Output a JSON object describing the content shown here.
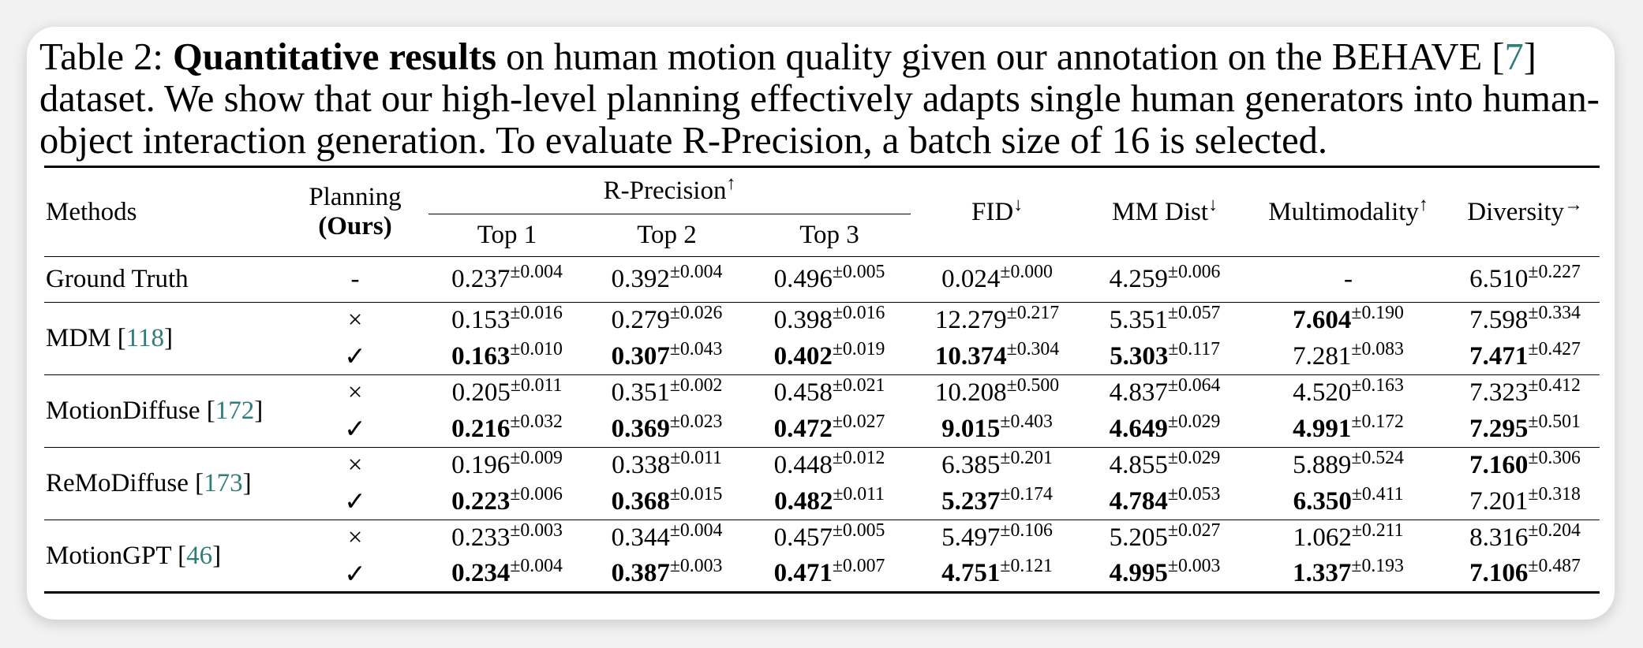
{
  "caption": [
    {
      "text": "Table 2: ",
      "bold": false,
      "link": false
    },
    {
      "text": "Quantitative results",
      "bold": true,
      "link": false
    },
    {
      "text": " on human motion quality given our annotation on the BEHAVE [",
      "bold": false,
      "link": false
    },
    {
      "text": "7",
      "bold": false,
      "link": true
    },
    {
      "text": "] dataset. We show that our high-level planning effectively adapts single human generators into human-object interaction generation. To evaluate R-Precision, a batch size of 16 is selected.",
      "bold": false,
      "link": false
    }
  ],
  "header": {
    "methods": "Methods",
    "planning": "Planning",
    "ours": "(Ours)",
    "r_precision": {
      "text": "R-Precision",
      "arrow": "↑"
    },
    "tops": [
      "Top 1",
      "Top 2",
      "Top 3"
    ],
    "metrics": [
      {
        "text": "FID",
        "arrow": "↓"
      },
      {
        "text": "MM Dist",
        "arrow": "↓"
      },
      {
        "text": "Multimodality",
        "arrow": "↑"
      },
      {
        "text": "Diversity",
        "arrow": "→"
      }
    ]
  },
  "groups": [
    {
      "method": [
        {
          "text": "Ground Truth",
          "link": false
        }
      ],
      "rows": [
        {
          "planning": "-",
          "cells": [
            {
              "v": "0.237",
              "s": "±0.004",
              "b": false
            },
            {
              "v": "0.392",
              "s": "±0.004",
              "b": false
            },
            {
              "v": "0.496",
              "s": "±0.005",
              "b": false
            },
            {
              "v": "0.024",
              "s": "±0.000",
              "b": false
            },
            {
              "v": "4.259",
              "s": "±0.006",
              "b": false
            },
            {
              "v": "-",
              "s": "",
              "b": false
            },
            {
              "v": "6.510",
              "s": "±0.227",
              "b": false
            }
          ]
        }
      ]
    },
    {
      "method": [
        {
          "text": "MDM [",
          "link": false
        },
        {
          "text": "118",
          "link": true
        },
        {
          "text": "]",
          "link": false
        }
      ],
      "rows": [
        {
          "planning": "×",
          "cells": [
            {
              "v": "0.153",
              "s": "±0.016",
              "b": false
            },
            {
              "v": "0.279",
              "s": "±0.026",
              "b": false
            },
            {
              "v": "0.398",
              "s": "±0.016",
              "b": false
            },
            {
              "v": "12.279",
              "s": "±0.217",
              "b": false
            },
            {
              "v": "5.351",
              "s": "±0.057",
              "b": false
            },
            {
              "v": "7.604",
              "s": "±0.190",
              "b": true
            },
            {
              "v": "7.598",
              "s": "±0.334",
              "b": false
            }
          ]
        },
        {
          "planning": "✓",
          "cells": [
            {
              "v": "0.163",
              "s": "±0.010",
              "b": true
            },
            {
              "v": "0.307",
              "s": "±0.043",
              "b": true
            },
            {
              "v": "0.402",
              "s": "±0.019",
              "b": true
            },
            {
              "v": "10.374",
              "s": "±0.304",
              "b": true
            },
            {
              "v": "5.303",
              "s": "±0.117",
              "b": true
            },
            {
              "v": "7.281",
              "s": "±0.083",
              "b": false
            },
            {
              "v": "7.471",
              "s": "±0.427",
              "b": true
            }
          ]
        }
      ]
    },
    {
      "method": [
        {
          "text": "MotionDiffuse [",
          "link": false
        },
        {
          "text": "172",
          "link": true
        },
        {
          "text": "]",
          "link": false
        }
      ],
      "rows": [
        {
          "planning": "×",
          "cells": [
            {
              "v": "0.205",
              "s": "±0.011",
              "b": false
            },
            {
              "v": "0.351",
              "s": "±0.002",
              "b": false
            },
            {
              "v": "0.458",
              "s": "±0.021",
              "b": false
            },
            {
              "v": "10.208",
              "s": "±0.500",
              "b": false
            },
            {
              "v": "4.837",
              "s": "±0.064",
              "b": false
            },
            {
              "v": "4.520",
              "s": "±0.163",
              "b": false
            },
            {
              "v": "7.323",
              "s": "±0.412",
              "b": false
            }
          ]
        },
        {
          "planning": "✓",
          "cells": [
            {
              "v": "0.216",
              "s": "±0.032",
              "b": true
            },
            {
              "v": "0.369",
              "s": "±0.023",
              "b": true
            },
            {
              "v": "0.472",
              "s": "±0.027",
              "b": true
            },
            {
              "v": "9.015",
              "s": "±0.403",
              "b": true
            },
            {
              "v": "4.649",
              "s": "±0.029",
              "b": true
            },
            {
              "v": "4.991",
              "s": "±0.172",
              "b": true
            },
            {
              "v": "7.295",
              "s": "±0.501",
              "b": true
            }
          ]
        }
      ]
    },
    {
      "method": [
        {
          "text": "ReMoDiffuse [",
          "link": false
        },
        {
          "text": "173",
          "link": true
        },
        {
          "text": "]",
          "link": false
        }
      ],
      "rows": [
        {
          "planning": "×",
          "cells": [
            {
              "v": "0.196",
              "s": "±0.009",
              "b": false
            },
            {
              "v": "0.338",
              "s": "±0.011",
              "b": false
            },
            {
              "v": "0.448",
              "s": "±0.012",
              "b": false
            },
            {
              "v": "6.385",
              "s": "±0.201",
              "b": false
            },
            {
              "v": "4.855",
              "s": "±0.029",
              "b": false
            },
            {
              "v": "5.889",
              "s": "±0.524",
              "b": false
            },
            {
              "v": "7.160",
              "s": "±0.306",
              "b": true
            }
          ]
        },
        {
          "planning": "✓",
          "cells": [
            {
              "v": "0.223",
              "s": "±0.006",
              "b": true
            },
            {
              "v": "0.368",
              "s": "±0.015",
              "b": true
            },
            {
              "v": "0.482",
              "s": "±0.011",
              "b": true
            },
            {
              "v": "5.237",
              "s": "±0.174",
              "b": true
            },
            {
              "v": "4.784",
              "s": "±0.053",
              "b": true
            },
            {
              "v": "6.350",
              "s": "±0.411",
              "b": true
            },
            {
              "v": "7.201",
              "s": "±0.318",
              "b": false
            }
          ]
        }
      ]
    },
    {
      "method": [
        {
          "text": "MotionGPT [",
          "link": false
        },
        {
          "text": "46",
          "link": true
        },
        {
          "text": "]",
          "link": false
        }
      ],
      "rows": [
        {
          "planning": "×",
          "cells": [
            {
              "v": "0.233",
              "s": "±0.003",
              "b": false
            },
            {
              "v": "0.344",
              "s": "±0.004",
              "b": false
            },
            {
              "v": "0.457",
              "s": "±0.005",
              "b": false
            },
            {
              "v": "5.497",
              "s": "±0.106",
              "b": false
            },
            {
              "v": "5.205",
              "s": "±0.027",
              "b": false
            },
            {
              "v": "1.062",
              "s": "±0.211",
              "b": false
            },
            {
              "v": "8.316",
              "s": "±0.204",
              "b": false
            }
          ]
        },
        {
          "planning": "✓",
          "cells": [
            {
              "v": "0.234",
              "s": "±0.004",
              "b": true
            },
            {
              "v": "0.387",
              "s": "±0.003",
              "b": true
            },
            {
              "v": "0.471",
              "s": "±0.007",
              "b": true
            },
            {
              "v": "4.751",
              "s": "±0.121",
              "b": true
            },
            {
              "v": "4.995",
              "s": "±0.003",
              "b": true
            },
            {
              "v": "1.337",
              "s": "±0.193",
              "b": true
            },
            {
              "v": "7.106",
              "s": "±0.487",
              "b": true
            }
          ]
        }
      ]
    }
  ]
}
